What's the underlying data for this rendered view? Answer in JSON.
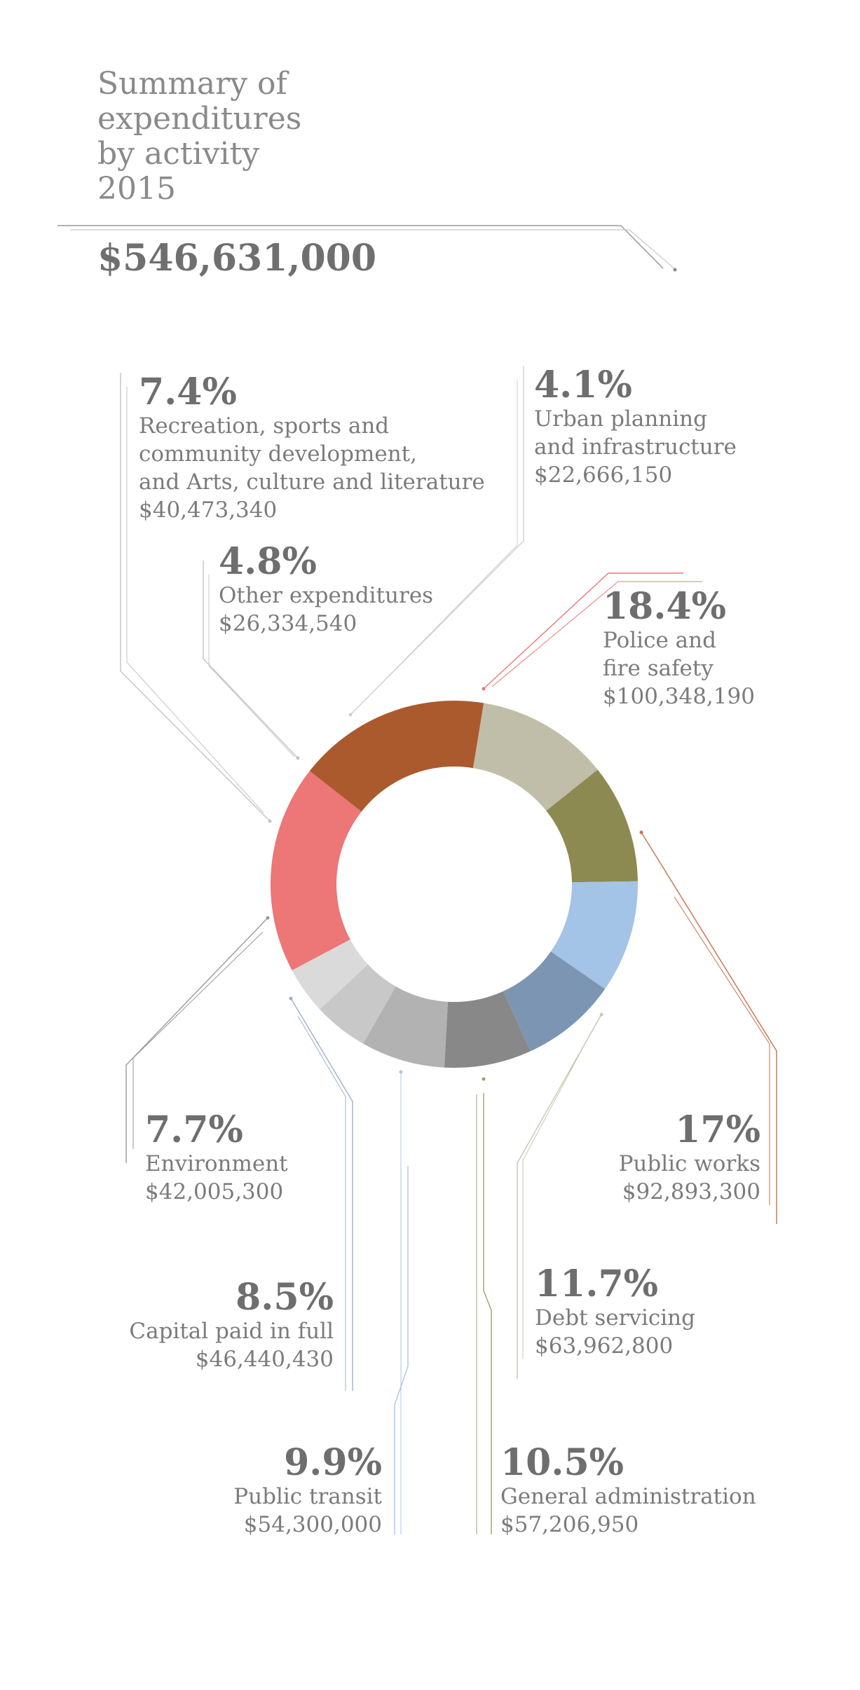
{
  "title": {
    "lines": [
      "Summary of",
      "expenditures",
      "by activity",
      "2015"
    ],
    "total": "$546,631,000"
  },
  "chart_data": {
    "type": "pie",
    "variant": "donut",
    "title": "Summary of expenditures by activity 2015",
    "total": 546631000,
    "series": [
      {
        "name": "Police and fire safety",
        "label_lines": [
          "Police and",
          "fire safety"
        ],
        "percent_label": "18.4%",
        "percent": 18.4,
        "value": 100348190,
        "amount_label": "$100,348,190",
        "color": "#ed7676"
      },
      {
        "name": "Public works",
        "label_lines": [
          "Public works"
        ],
        "percent_label": "17%",
        "percent": 17.0,
        "value": 92893300,
        "amount_label": "$92,893,300",
        "color": "#ab5a2d"
      },
      {
        "name": "Debt servicing",
        "label_lines": [
          "Debt servicing"
        ],
        "percent_label": "11.7%",
        "percent": 11.7,
        "value": 63962800,
        "amount_label": "$63,962,800",
        "color": "#c0bea8"
      },
      {
        "name": "General administration",
        "label_lines": [
          "General administration"
        ],
        "percent_label": "10.5%",
        "percent": 10.5,
        "value": 57206950,
        "amount_label": "$57,206,950",
        "color": "#8c8a50"
      },
      {
        "name": "Public transit",
        "label_lines": [
          "Public transit"
        ],
        "percent_label": "9.9%",
        "percent": 9.9,
        "value": 54300000,
        "amount_label": "$54,300,000",
        "color": "#a3c3e7"
      },
      {
        "name": "Capital paid in full",
        "label_lines": [
          "Capital paid in full"
        ],
        "percent_label": "8.5%",
        "percent": 8.5,
        "value": 46440430,
        "amount_label": "$46,440,430",
        "color": "#7b95b2"
      },
      {
        "name": "Environment",
        "label_lines": [
          "Environment"
        ],
        "percent_label": "7.7%",
        "percent": 7.7,
        "value": 42005300,
        "amount_label": "$42,005,300",
        "color": "#888888"
      },
      {
        "name": "Recreation, sports and community development, and Arts, culture and literature",
        "label_lines": [
          "Recreation, sports and",
          "community development,",
          "and Arts, culture and literature"
        ],
        "percent_label": "7.4%",
        "percent": 7.4,
        "value": 40473340,
        "amount_label": "$40,473,340",
        "color": "#b2b2b2"
      },
      {
        "name": "Other expenditures",
        "label_lines": [
          "Other expenditures"
        ],
        "percent_label": "4.8%",
        "percent": 4.8,
        "value": 26334540,
        "amount_label": "$26,334,540",
        "color": "#c8c8c8"
      },
      {
        "name": "Urban planning and infrastructure",
        "label_lines": [
          "Urban planning",
          "and infrastructure"
        ],
        "percent_label": "4.1%",
        "percent": 4.1,
        "value": 22666150,
        "amount_label": "$22,666,150",
        "color": "#dadada"
      }
    ]
  }
}
